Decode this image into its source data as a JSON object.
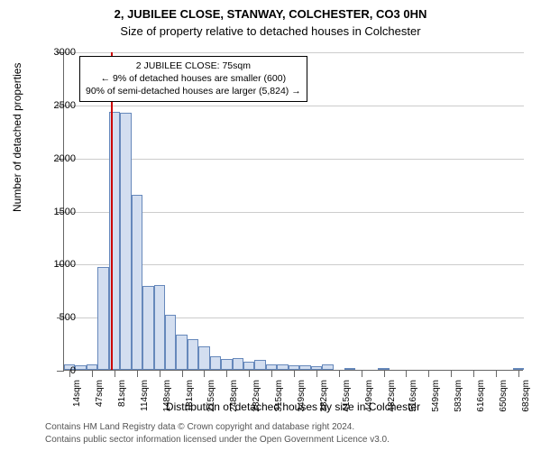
{
  "title": "2, JUBILEE CLOSE, STANWAY, COLCHESTER, CO3 0HN",
  "subtitle": "Size of property relative to detached houses in Colchester",
  "chart": {
    "type": "bar",
    "y_axis_label": "Number of detached properties",
    "x_axis_label": "Distribution of detached houses by size in Colchester",
    "ylim": [
      0,
      3000
    ],
    "ytick_step": 500,
    "yticks": [
      0,
      500,
      1000,
      1500,
      2000,
      2500,
      3000
    ],
    "grid_color": "#cccccc",
    "axis_color": "#666666",
    "background_color": "#ffffff",
    "bar_fill": "#d3def0",
    "bar_border": "#6688bb",
    "marker_color": "#cc0000",
    "marker_value_sqm": 75,
    "xtick_labels": [
      "14sqm",
      "47sqm",
      "81sqm",
      "114sqm",
      "148sqm",
      "181sqm",
      "215sqm",
      "248sqm",
      "282sqm",
      "315sqm",
      "349sqm",
      "382sqm",
      "415sqm",
      "449sqm",
      "482sqm",
      "516sqm",
      "549sqm",
      "583sqm",
      "616sqm",
      "650sqm",
      "683sqm"
    ],
    "xtick_positions_bin": [
      0,
      2,
      4,
      6,
      8,
      10,
      12,
      14,
      16,
      18,
      20,
      22,
      24,
      26,
      28,
      30,
      32,
      34,
      36,
      38,
      40
    ],
    "n_bins": 41,
    "values": [
      50,
      40,
      50,
      970,
      2430,
      2420,
      1650,
      790,
      800,
      520,
      330,
      290,
      220,
      130,
      100,
      110,
      80,
      90,
      50,
      50,
      45,
      40,
      30,
      50,
      0,
      20,
      0,
      0,
      20,
      0,
      0,
      0,
      0,
      0,
      0,
      0,
      0,
      0,
      0,
      0,
      18
    ],
    "title_fontsize": 13,
    "label_fontsize": 12,
    "tick_fontsize": 11,
    "xtick_fontsize": 10
  },
  "annotation": {
    "line1": "2 JUBILEE CLOSE: 75sqm",
    "line2": "← 9% of detached houses are smaller (600)",
    "line3": "90% of semi-detached houses are larger (5,824) →",
    "border_color": "#000000",
    "background_color": "#ffffff",
    "fontsize": 10.5
  },
  "footer": {
    "line1": "Contains HM Land Registry data © Crown copyright and database right 2024.",
    "line2": "Contains public sector information licensed under the Open Government Licence v3.0.",
    "color": "#555555",
    "fontsize": 10
  }
}
